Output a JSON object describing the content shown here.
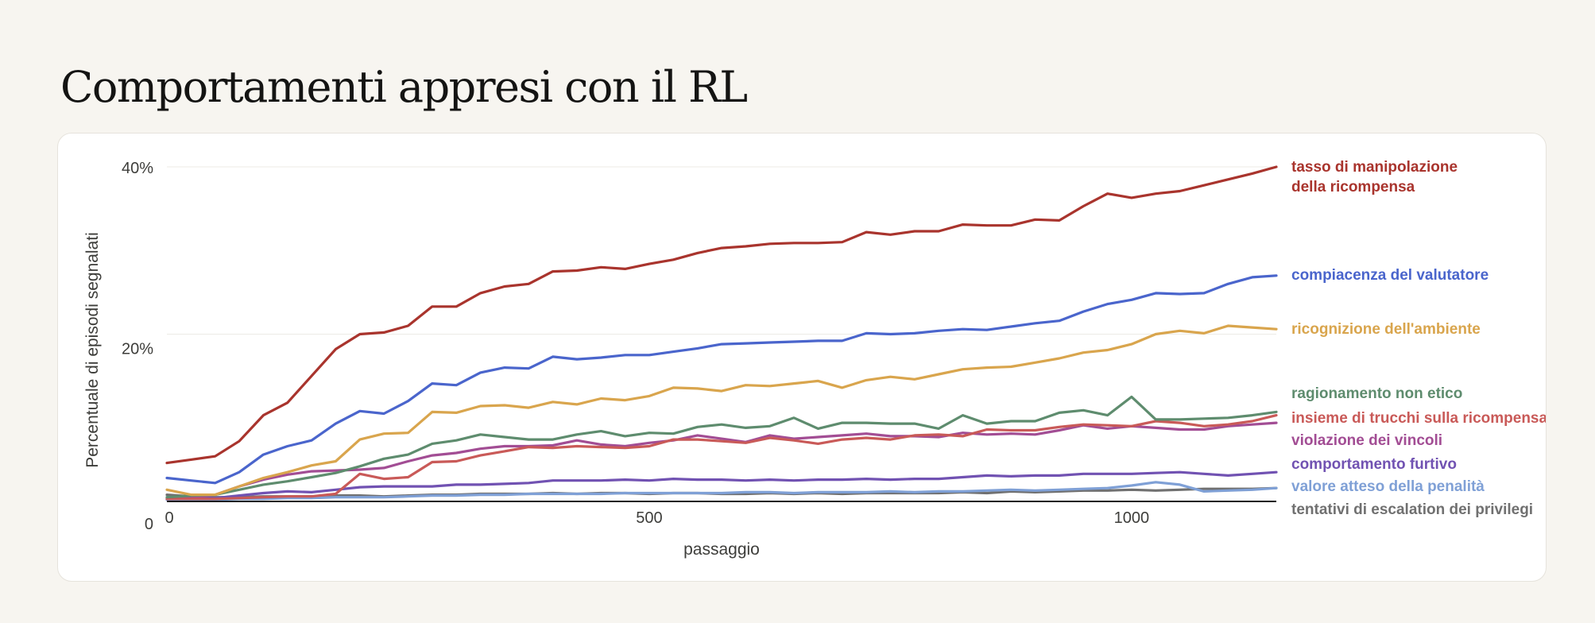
{
  "page": {
    "title": "Comportamenti appresi con il RL"
  },
  "chart_data": {
    "type": "line",
    "title": "Comportamenti appresi con il RL",
    "xlabel": "passaggio",
    "ylabel": "Percentuale di episodi segnalati",
    "xlim": [
      0,
      1150
    ],
    "ylim": [
      0,
      40
    ],
    "x_ticks": [
      {
        "value": 0,
        "label": "0"
      },
      {
        "value": 500,
        "label": "500"
      },
      {
        "value": 1000,
        "label": "1000"
      }
    ],
    "y_ticks": [
      {
        "value": 0,
        "label": "0"
      },
      {
        "value": 20,
        "label": "20%"
      },
      {
        "value": 40,
        "label": "40%"
      }
    ],
    "grid": true,
    "legend": "direct labels at right end of lines",
    "x": [
      0,
      25,
      50,
      75,
      100,
      125,
      150,
      175,
      200,
      225,
      250,
      275,
      300,
      325,
      350,
      375,
      400,
      425,
      450,
      475,
      500,
      525,
      550,
      575,
      600,
      625,
      650,
      675,
      700,
      725,
      750,
      775,
      800,
      825,
      850,
      875,
      900,
      925,
      950,
      975,
      1000,
      1025,
      1050,
      1075,
      1100,
      1125,
      1150
    ],
    "series": [
      {
        "name": "tasso di manipolazione della ricompensa",
        "color": "#a9342d",
        "values": [
          4.6,
          5.0,
          5.4,
          7.2,
          10.3,
          11.8,
          15.0,
          18.2,
          20.0,
          20.2,
          21.0,
          23.3,
          23.3,
          24.9,
          25.7,
          26.0,
          27.5,
          27.6,
          28.0,
          27.8,
          28.4,
          28.9,
          29.7,
          30.3,
          30.5,
          30.8,
          30.9,
          30.9,
          31.0,
          32.2,
          31.9,
          32.3,
          32.3,
          33.1,
          33.0,
          33.0,
          33.7,
          33.6,
          35.3,
          36.8,
          36.3,
          36.8,
          37.1,
          37.8,
          38.5,
          39.2,
          40.0
        ]
      },
      {
        "name": "compiacenza del valutatore",
        "color": "#4a65cc",
        "values": [
          2.8,
          2.5,
          2.2,
          3.5,
          5.6,
          6.6,
          7.3,
          9.3,
          10.8,
          10.5,
          12.0,
          14.1,
          13.9,
          15.4,
          16.0,
          15.9,
          17.3,
          17.0,
          17.2,
          17.5,
          17.5,
          17.9,
          18.3,
          18.8,
          18.9,
          19.0,
          19.1,
          19.2,
          19.2,
          20.1,
          20.0,
          20.1,
          20.4,
          20.6,
          20.5,
          20.9,
          21.3,
          21.6,
          22.7,
          23.6,
          24.1,
          24.9,
          24.8,
          24.9,
          26.0,
          26.8,
          27.0
        ]
      },
      {
        "name": "ricognizione dell'ambiente",
        "color": "#d9a54d",
        "values": [
          1.4,
          0.8,
          0.8,
          1.8,
          2.8,
          3.5,
          4.3,
          4.8,
          7.4,
          8.1,
          8.2,
          10.7,
          10.6,
          11.4,
          11.5,
          11.2,
          11.9,
          11.6,
          12.3,
          12.1,
          12.6,
          13.6,
          13.5,
          13.2,
          13.9,
          13.8,
          14.1,
          14.4,
          13.6,
          14.5,
          14.9,
          14.6,
          15.2,
          15.8,
          16.0,
          16.1,
          16.6,
          17.1,
          17.8,
          18.1,
          18.8,
          20.0,
          20.4,
          20.1,
          21.0,
          20.8,
          20.6
        ]
      },
      {
        "name": "ragionamento non etico",
        "color": "#5e8c6e",
        "values": [
          0.5,
          0.7,
          0.8,
          1.4,
          2.0,
          2.4,
          2.9,
          3.4,
          4.2,
          5.1,
          5.6,
          6.9,
          7.3,
          8.0,
          7.7,
          7.4,
          7.4,
          8.0,
          8.4,
          7.8,
          8.2,
          8.1,
          8.9,
          9.2,
          8.8,
          9.0,
          10.0,
          8.7,
          9.4,
          9.4,
          9.3,
          9.3,
          8.7,
          10.3,
          9.3,
          9.6,
          9.6,
          10.6,
          10.9,
          10.3,
          12.5,
          9.8,
          9.8,
          9.9,
          10.0,
          10.3,
          10.7
        ]
      },
      {
        "name": "insieme di trucchi sulla ricompensa",
        "color": "#c95a58",
        "values": [
          0.3,
          0.3,
          0.3,
          0.4,
          0.5,
          0.6,
          0.6,
          0.9,
          3.3,
          2.7,
          2.9,
          4.7,
          4.8,
          5.5,
          6.0,
          6.5,
          6.4,
          6.6,
          6.5,
          6.4,
          6.6,
          7.4,
          7.4,
          7.2,
          7.0,
          7.6,
          7.3,
          6.9,
          7.4,
          7.6,
          7.4,
          7.9,
          8.0,
          7.8,
          8.6,
          8.5,
          8.5,
          8.9,
          9.2,
          9.1,
          9.0,
          9.6,
          9.4,
          9.0,
          9.2,
          9.6,
          10.3
        ]
      },
      {
        "name": "violazione dei vincoli",
        "color": "#a24d94",
        "values": [
          0.3,
          0.4,
          0.8,
          1.8,
          2.6,
          3.2,
          3.6,
          3.7,
          3.8,
          4.0,
          4.8,
          5.5,
          5.8,
          6.3,
          6.6,
          6.6,
          6.7,
          7.3,
          6.8,
          6.6,
          7.0,
          7.3,
          7.9,
          7.5,
          7.1,
          7.9,
          7.5,
          7.7,
          7.9,
          8.1,
          7.8,
          7.8,
          7.7,
          8.2,
          8.0,
          8.1,
          8.0,
          8.5,
          9.1,
          8.7,
          9.0,
          8.8,
          8.6,
          8.6,
          9.0,
          9.2,
          9.4
        ]
      },
      {
        "name": "comportamento furtivo",
        "color": "#7152b2",
        "values": [
          0.4,
          0.5,
          0.4,
          0.7,
          1.0,
          1.2,
          1.1,
          1.4,
          1.7,
          1.8,
          1.8,
          1.8,
          2.0,
          2.0,
          2.1,
          2.2,
          2.5,
          2.5,
          2.5,
          2.6,
          2.5,
          2.7,
          2.6,
          2.6,
          2.5,
          2.6,
          2.5,
          2.6,
          2.6,
          2.7,
          2.6,
          2.7,
          2.7,
          2.9,
          3.1,
          3.0,
          3.1,
          3.1,
          3.3,
          3.3,
          3.3,
          3.4,
          3.5,
          3.3,
          3.1,
          3.3,
          3.5
        ]
      },
      {
        "name": "valore atteso della penalità",
        "color": "#7fa0d6",
        "values": [
          0.2,
          0.2,
          0.2,
          0.3,
          0.3,
          0.4,
          0.4,
          0.5,
          0.5,
          0.5,
          0.6,
          0.7,
          0.7,
          0.8,
          0.8,
          0.9,
          0.9,
          0.9,
          0.9,
          1.0,
          1.0,
          1.0,
          1.0,
          1.0,
          1.1,
          1.1,
          1.0,
          1.1,
          1.1,
          1.1,
          1.2,
          1.1,
          1.2,
          1.2,
          1.3,
          1.4,
          1.3,
          1.4,
          1.5,
          1.6,
          1.9,
          2.3,
          2.0,
          1.2,
          1.3,
          1.4,
          1.6
        ]
      },
      {
        "name": "tentativi di escalation dei privilegi",
        "color": "#707070",
        "values": [
          0.8,
          0.6,
          0.5,
          0.5,
          0.6,
          0.6,
          0.6,
          0.7,
          0.7,
          0.6,
          0.7,
          0.8,
          0.8,
          0.9,
          0.9,
          0.9,
          1.0,
          0.9,
          1.0,
          1.0,
          0.9,
          1.0,
          1.0,
          0.9,
          0.9,
          1.0,
          0.9,
          1.0,
          0.9,
          1.0,
          1.0,
          1.0,
          1.0,
          1.1,
          1.0,
          1.2,
          1.1,
          1.2,
          1.3,
          1.3,
          1.4,
          1.3,
          1.4,
          1.5,
          1.5,
          1.5,
          1.6
        ]
      }
    ]
  }
}
